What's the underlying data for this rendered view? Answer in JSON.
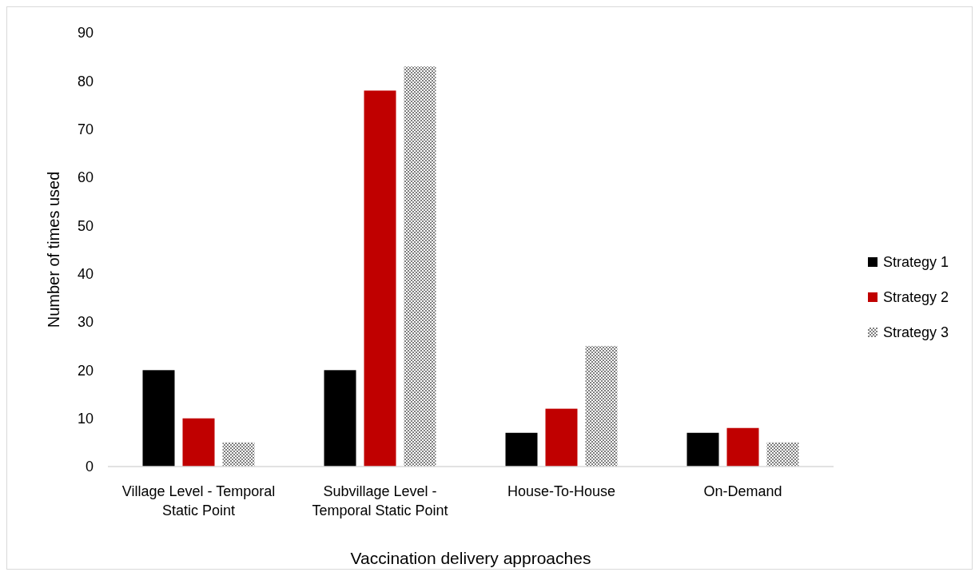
{
  "chart_data": {
    "type": "bar",
    "xlabel": "Vaccination delivery approaches",
    "ylabel": "Number of times used",
    "categories": [
      "Village Level - Temporal Static Point",
      "Subvillage Level - Temporal Static Point",
      "House-To-House",
      "On-Demand"
    ],
    "series": [
      {
        "name": "Strategy 1",
        "color": "#000000",
        "values": [
          20,
          20,
          7,
          7
        ]
      },
      {
        "name": "Strategy 2",
        "color": "#c00000",
        "values": [
          10,
          78,
          12,
          8
        ]
      },
      {
        "name": "Strategy 3",
        "color": "#7f7f7f",
        "values": [
          5,
          83,
          25,
          5
        ]
      }
    ],
    "ylim": [
      0,
      90
    ],
    "yticks": [
      0,
      10,
      20,
      30,
      40,
      50,
      60,
      70,
      80,
      90
    ],
    "grid": false,
    "legend": "right"
  }
}
